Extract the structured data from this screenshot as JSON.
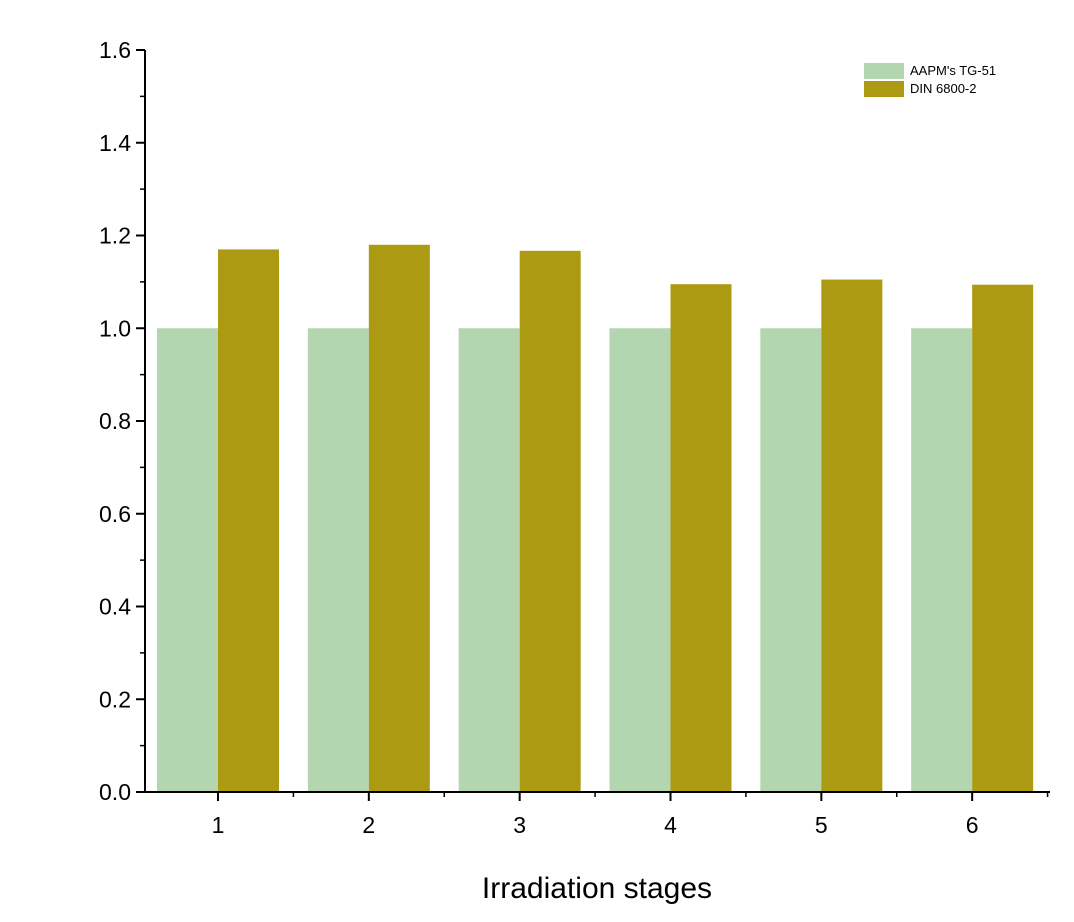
{
  "chart_data": {
    "type": "bar",
    "title": "",
    "xlabel": "Irradiation stages",
    "ylabel": "",
    "categories": [
      "1",
      "2",
      "3",
      "4",
      "5",
      "6"
    ],
    "ylim": [
      0,
      1.6
    ],
    "yticks": [
      "0.0",
      "0.2",
      "0.4",
      "0.6",
      "0.8",
      "1.0",
      "1.2",
      "1.4",
      "1.6"
    ],
    "grid": false,
    "legend_position": "top-right",
    "series": [
      {
        "name": "AAPM's TG-51",
        "color": "#b3d6b0",
        "values": [
          1.0,
          1.0,
          1.0,
          1.0,
          1.0,
          1.0
        ]
      },
      {
        "name": "DIN 6800-2",
        "color": "#ac9a12",
        "values": [
          1.17,
          1.18,
          1.167,
          1.095,
          1.105,
          1.094
        ]
      }
    ]
  }
}
